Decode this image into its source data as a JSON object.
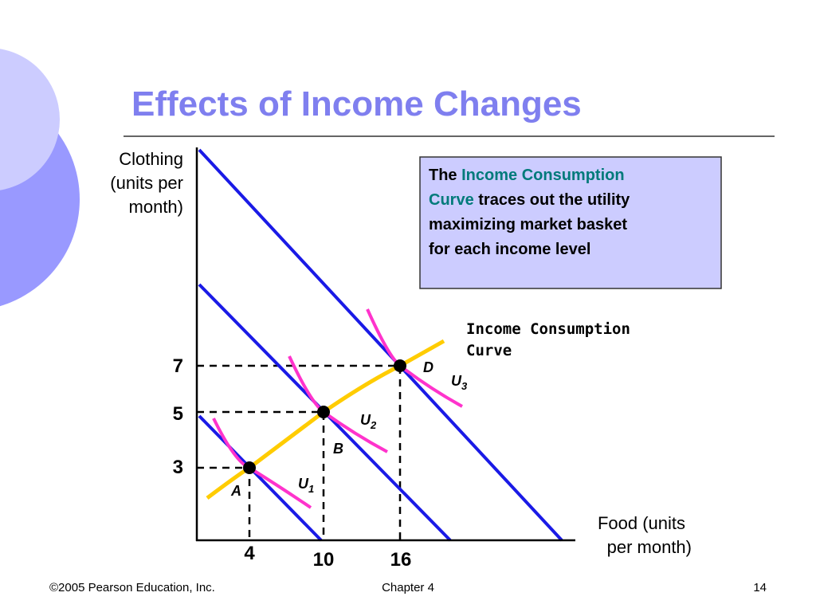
{
  "title": "Effects of Income Changes",
  "y_axis_label": [
    "Clothing",
    "(units per",
    "month)"
  ],
  "x_axis_label": [
    "Food (units",
    "per month)"
  ],
  "x_ticks": [
    4,
    10,
    16
  ],
  "y_ticks": [
    7,
    5,
    3
  ],
  "points": [
    "A",
    "B",
    "D"
  ],
  "curves": [
    {
      "letter": "U",
      "subscript": "1"
    },
    {
      "letter": "U",
      "subscript": "2"
    },
    {
      "letter": "U",
      "subscript": "3"
    }
  ],
  "icc_label": [
    "Income Consumption",
    "Curve"
  ],
  "callout": {
    "lines": [
      {
        "before": "The",
        "highlight": "Income Consumption"
      },
      {
        "highlight": "Curve",
        "after": "traces out the utility"
      },
      {
        "after": "maximizing market basket"
      },
      {
        "after": "for each income level"
      }
    ]
  },
  "footer": {
    "left": "©2005 Pearson Education, Inc.",
    "center": "Chapter 4",
    "right": "14"
  }
}
